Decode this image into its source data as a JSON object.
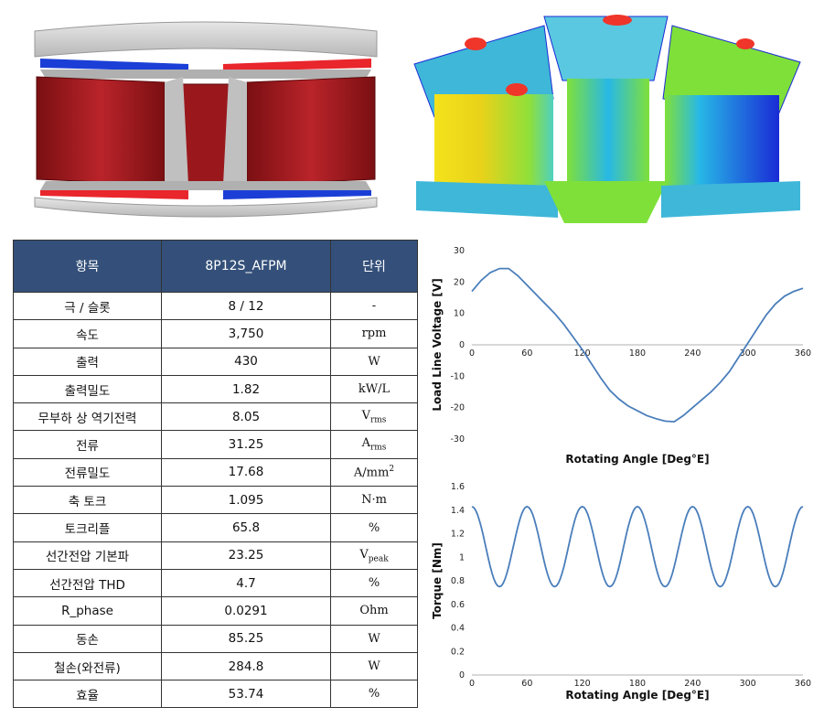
{
  "figure_left": {
    "type": "axial-flux motor stator/rotor cross-section render",
    "colors": {
      "core": "#a8191c",
      "plate": "#c8c8c8",
      "magnet_red": "#e8262c",
      "magnet_blue": "#1b3fd6"
    }
  },
  "figure_right": {
    "type": "core loss distribution contour render",
    "colors": [
      "#1a2bd6",
      "#27b8e6",
      "#7fe03a",
      "#f4e21b",
      "#f0352a"
    ]
  },
  "table": {
    "headers": [
      "항목",
      "8P12S_AFPM",
      "단위"
    ],
    "rows": [
      {
        "item": "극 / 슬롯",
        "value": "8 / 12",
        "unit": "-"
      },
      {
        "item": "속도",
        "value": "3,750",
        "unit": "rpm"
      },
      {
        "item": "출력",
        "value": "430",
        "unit": "W"
      },
      {
        "item": "출력밀도",
        "value": "1.82",
        "unit": "kW/L"
      },
      {
        "item": "무부하 상 역기전력",
        "value": "8.05",
        "unit": "V",
        "unit_sub": "rms"
      },
      {
        "item": "전류",
        "value": "31.25",
        "unit": "A",
        "unit_sub": "rms"
      },
      {
        "item": "전류밀도",
        "value": "17.68",
        "unit": "A/mm",
        "unit_sup": "2"
      },
      {
        "item": "축 토크",
        "value": "1.095",
        "unit": "N·m"
      },
      {
        "item": "토크리플",
        "value": "65.8",
        "unit": "%"
      },
      {
        "item": "선간전압 기본파",
        "value": "23.25",
        "unit": "V",
        "unit_sub": "peak"
      },
      {
        "item": "선간전압 THD",
        "value": "4.7",
        "unit": "%"
      },
      {
        "item": "R_phase",
        "value": "0.0291",
        "unit": "Ohm"
      },
      {
        "item": "동손",
        "value": "85.25",
        "unit": "W"
      },
      {
        "item": "철손(와전류)",
        "value": "284.8",
        "unit": "W"
      },
      {
        "item": "효율",
        "value": "53.74",
        "unit": "%"
      }
    ]
  },
  "chart_data": [
    {
      "type": "line",
      "xlabel": "Rotating Angle [Deg°E]",
      "ylabel": "Load Line Voltage [V]",
      "xlim": [
        0,
        360
      ],
      "ylim": [
        -30,
        30
      ],
      "xticks": [
        0,
        60,
        120,
        180,
        240,
        300,
        360
      ],
      "yticks": [
        30,
        20,
        10,
        0,
        -10,
        -20,
        -30
      ],
      "grid": false,
      "color": "#4a7ebb",
      "series": [
        {
          "x": [
            0,
            10,
            20,
            30,
            40,
            50,
            60,
            70,
            80,
            90,
            100,
            110,
            120,
            130,
            140,
            150,
            160,
            170,
            180,
            190,
            200,
            210,
            220,
            230,
            240,
            250,
            260,
            270,
            280,
            290,
            300,
            310,
            320,
            330,
            340,
            350,
            360
          ],
          "y": [
            17,
            20.5,
            23,
            24.3,
            24.3,
            22,
            19,
            16,
            13,
            10,
            6.5,
            2.5,
            -1.5,
            -6,
            -10.5,
            -14.5,
            -17.3,
            -19.5,
            -21,
            -22.5,
            -23.5,
            -24.3,
            -24.5,
            -22.5,
            -20,
            -17.5,
            -15,
            -12,
            -8.5,
            -4,
            0.5,
            5,
            9.5,
            13,
            15.5,
            17,
            18
          ]
        }
      ]
    },
    {
      "type": "line",
      "xlabel": "Rotating Angle [Deg°E]",
      "ylabel": "Torque [Nm]",
      "xlim": [
        0,
        360
      ],
      "ylim": [
        0,
        1.6
      ],
      "xticks": [
        0,
        60,
        120,
        180,
        240,
        300,
        360
      ],
      "yticks": [
        1.6,
        1.4,
        1.2,
        1,
        0.8,
        0.6,
        0.4,
        0.2,
        0
      ],
      "grid": false,
      "color": "#4a7ebb",
      "series": [
        {
          "periods": 6,
          "max": 1.43,
          "min": 0.75,
          "x_at_max": 0
        }
      ]
    }
  ]
}
